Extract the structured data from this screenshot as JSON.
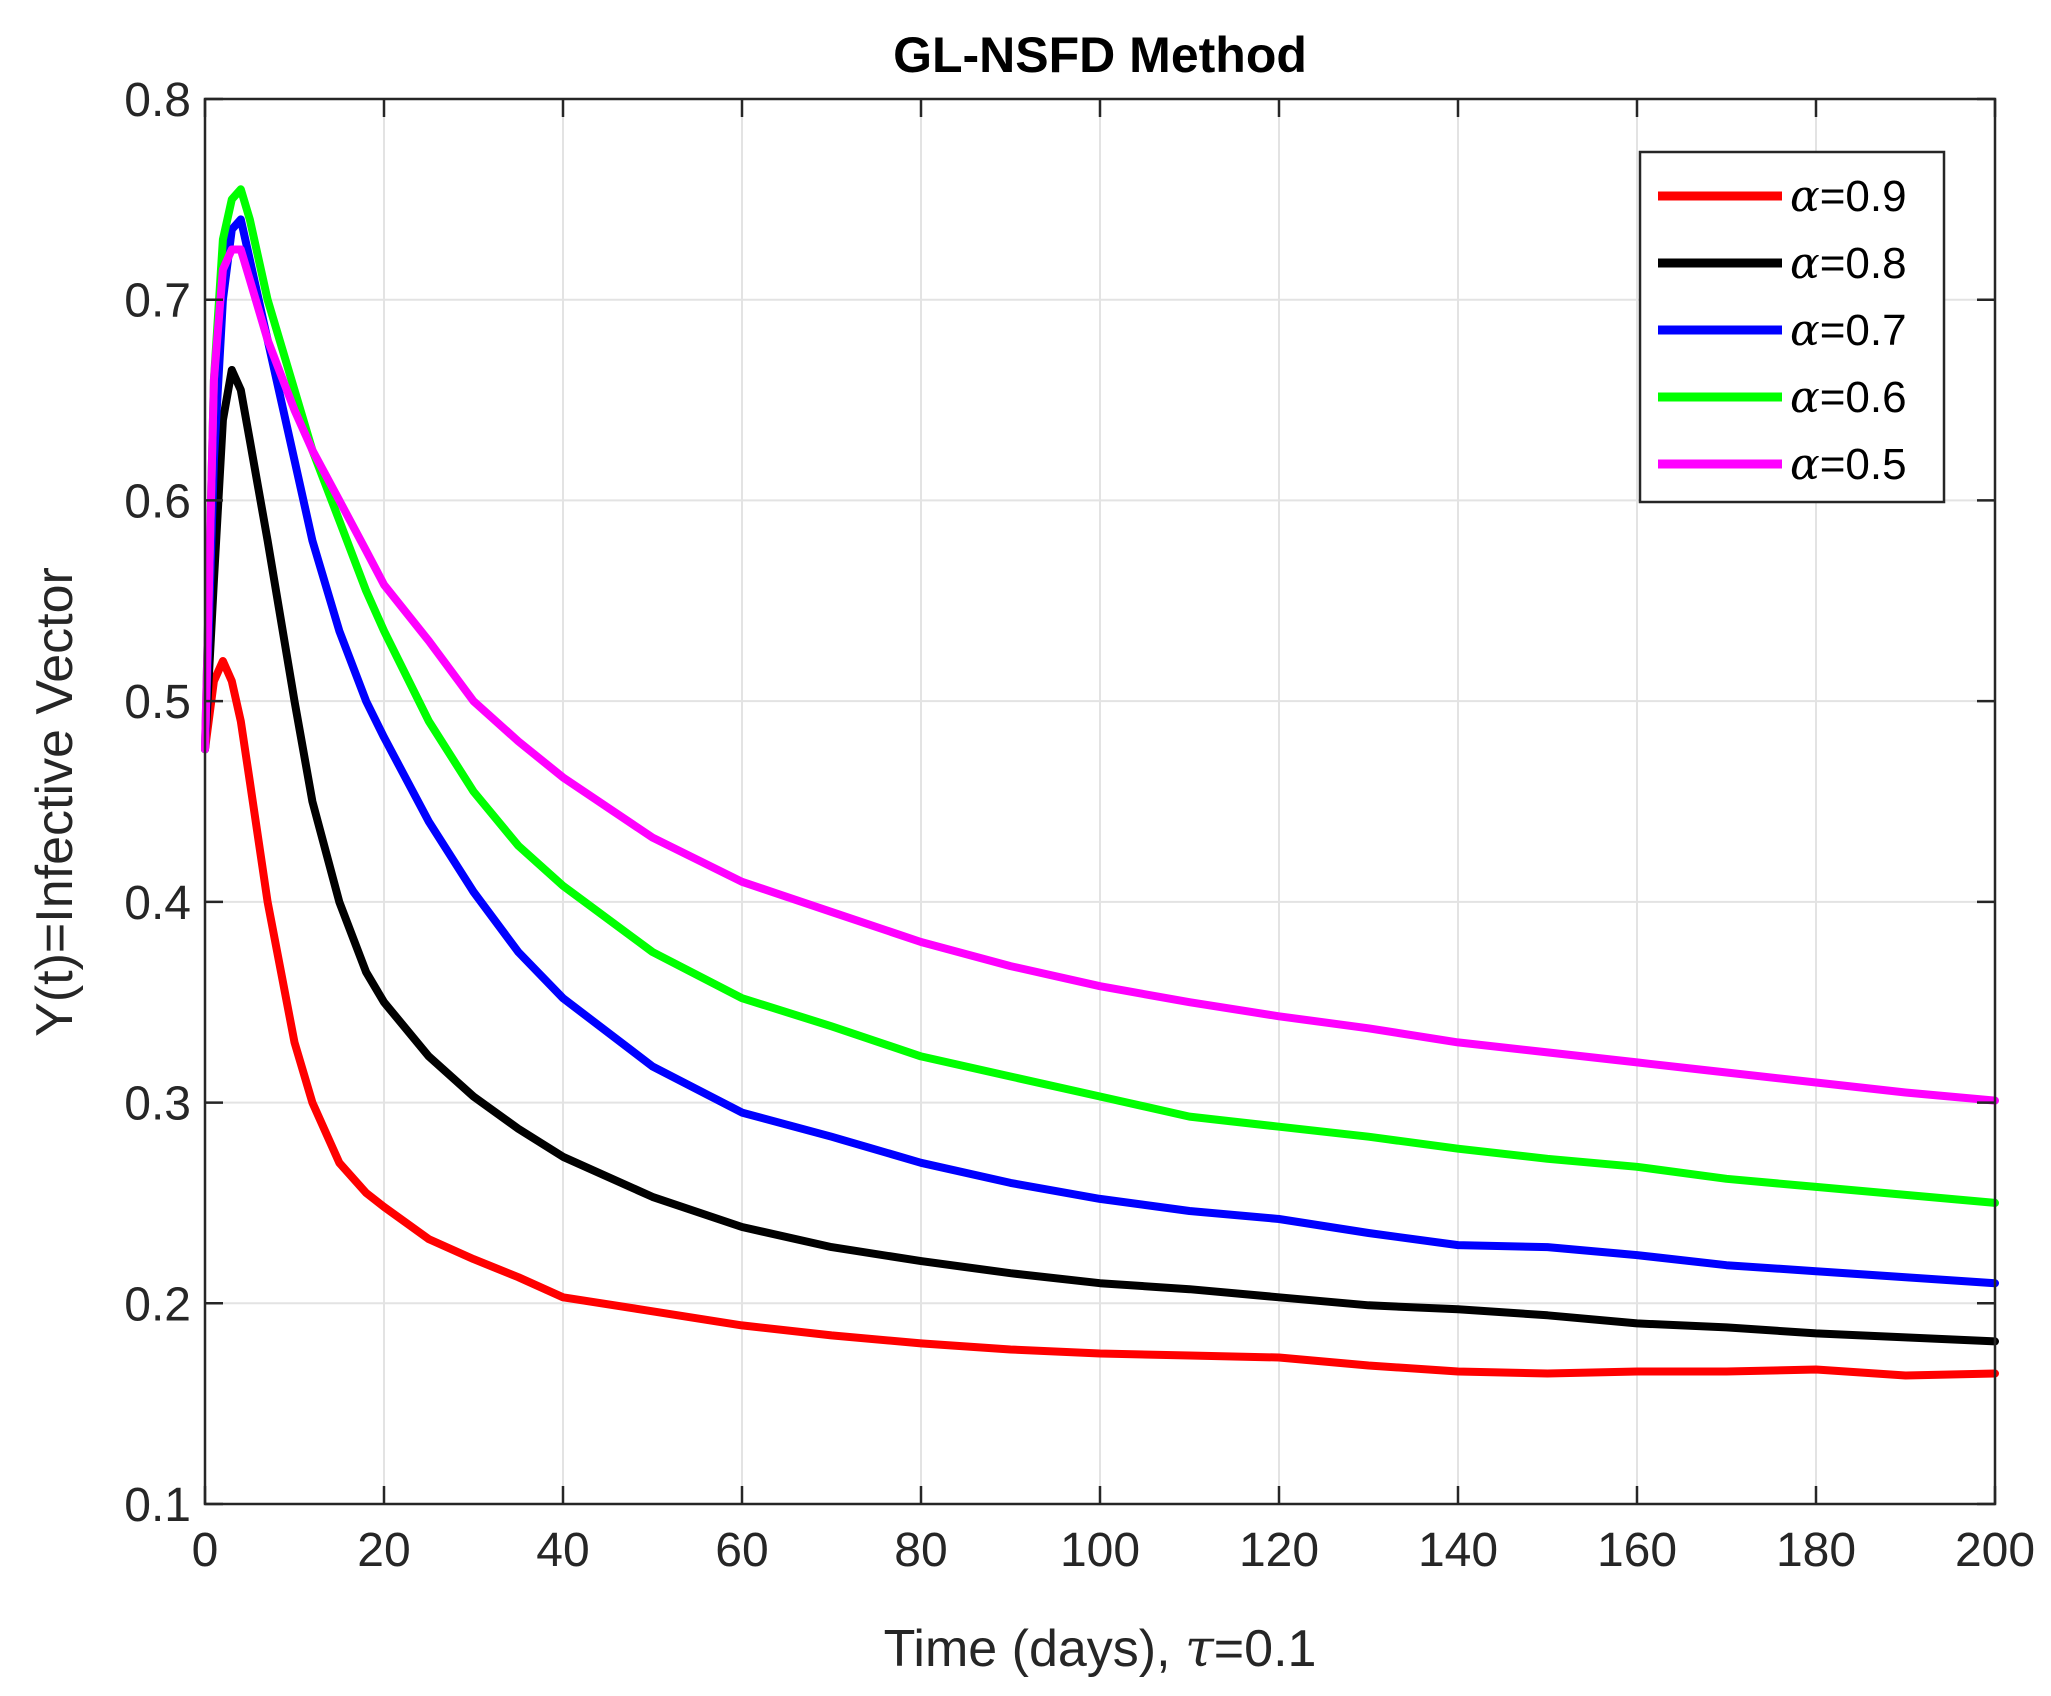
{
  "chart_data": {
    "type": "line",
    "title": "GL-NSFD Method",
    "xlabel": {
      "main": "Time (days), ",
      "greek": "τ",
      "suffix": "=0.1"
    },
    "ylabel": "Y(t)=Infective Vector",
    "xlim": [
      0,
      200
    ],
    "ylim": [
      0.1,
      0.8
    ],
    "xticks": [
      0,
      20,
      40,
      60,
      80,
      100,
      120,
      140,
      160,
      180,
      200
    ],
    "yticks": [
      0.1,
      0.2,
      0.3,
      0.4,
      0.5,
      0.6,
      0.7,
      0.8
    ],
    "xtick_labels": [
      "0",
      "20",
      "40",
      "60",
      "80",
      "100",
      "120",
      "140",
      "160",
      "180",
      "200"
    ],
    "ytick_labels": [
      "0.1",
      "0.2",
      "0.3",
      "0.4",
      "0.5",
      "0.6",
      "0.7",
      "0.8"
    ],
    "grid": true,
    "legend_position": "top-right",
    "series": [
      {
        "name": "α=0.9",
        "greek": "α",
        "value_text": "=0.9",
        "color": "#ff0000",
        "x": [
          0,
          1,
          2,
          3,
          4,
          5,
          7,
          10,
          12,
          15,
          18,
          20,
          25,
          30,
          35,
          40,
          50,
          60,
          70,
          80,
          90,
          100,
          110,
          120,
          130,
          140,
          150,
          160,
          170,
          180,
          190,
          200
        ],
        "y": [
          0.476,
          0.51,
          0.52,
          0.51,
          0.49,
          0.46,
          0.4,
          0.33,
          0.3,
          0.27,
          0.255,
          0.248,
          0.232,
          0.222,
          0.213,
          0.203,
          0.196,
          0.189,
          0.184,
          0.18,
          0.177,
          0.175,
          0.174,
          0.173,
          0.169,
          0.166,
          0.165,
          0.166,
          0.166,
          0.167,
          0.164,
          0.165
        ]
      },
      {
        "name": "α=0.8",
        "greek": "α",
        "value_text": "=0.8",
        "color": "#000000",
        "x": [
          0,
          1,
          2,
          3,
          4,
          5,
          7,
          10,
          12,
          15,
          18,
          20,
          25,
          30,
          35,
          40,
          50,
          60,
          70,
          80,
          90,
          100,
          110,
          120,
          130,
          140,
          150,
          160,
          170,
          180,
          190,
          200
        ],
        "y": [
          0.476,
          0.56,
          0.64,
          0.665,
          0.655,
          0.63,
          0.58,
          0.5,
          0.45,
          0.4,
          0.365,
          0.35,
          0.323,
          0.303,
          0.287,
          0.273,
          0.253,
          0.238,
          0.228,
          0.221,
          0.215,
          0.21,
          0.207,
          0.203,
          0.199,
          0.197,
          0.194,
          0.19,
          0.188,
          0.185,
          0.183,
          0.181
        ]
      },
      {
        "name": "α=0.7",
        "greek": "α",
        "value_text": "=0.7",
        "color": "#0000ff",
        "x": [
          0,
          1,
          2,
          3,
          4,
          5,
          7,
          10,
          12,
          15,
          18,
          20,
          25,
          30,
          35,
          40,
          50,
          60,
          70,
          80,
          90,
          100,
          110,
          120,
          130,
          140,
          150,
          160,
          170,
          180,
          190,
          200
        ],
        "y": [
          0.476,
          0.62,
          0.7,
          0.735,
          0.74,
          0.72,
          0.68,
          0.62,
          0.58,
          0.535,
          0.5,
          0.482,
          0.44,
          0.405,
          0.375,
          0.352,
          0.318,
          0.295,
          0.283,
          0.27,
          0.26,
          0.252,
          0.246,
          0.242,
          0.235,
          0.229,
          0.228,
          0.224,
          0.219,
          0.216,
          0.213,
          0.21
        ]
      },
      {
        "name": "α=0.6",
        "greek": "α",
        "value_text": "=0.6",
        "color": "#00ff00",
        "x": [
          0,
          1,
          2,
          3,
          4,
          5,
          7,
          10,
          12,
          15,
          18,
          20,
          25,
          30,
          35,
          40,
          50,
          60,
          70,
          80,
          90,
          100,
          110,
          120,
          130,
          140,
          150,
          160,
          170,
          180,
          190,
          200
        ],
        "y": [
          0.476,
          0.66,
          0.73,
          0.75,
          0.755,
          0.74,
          0.7,
          0.655,
          0.625,
          0.59,
          0.555,
          0.535,
          0.49,
          0.455,
          0.428,
          0.408,
          0.375,
          0.352,
          0.338,
          0.323,
          0.313,
          0.303,
          0.293,
          0.288,
          0.283,
          0.277,
          0.272,
          0.268,
          0.262,
          0.258,
          0.254,
          0.25
        ]
      },
      {
        "name": "α=0.5",
        "greek": "α",
        "value_text": "=0.5",
        "color": "#ff00ff",
        "x": [
          0,
          1,
          2,
          3,
          4,
          5,
          7,
          10,
          12,
          15,
          18,
          20,
          25,
          30,
          35,
          40,
          50,
          60,
          70,
          80,
          90,
          100,
          110,
          120,
          130,
          140,
          150,
          160,
          170,
          180,
          190,
          200
        ],
        "y": [
          0.476,
          0.66,
          0.715,
          0.725,
          0.725,
          0.71,
          0.68,
          0.645,
          0.625,
          0.6,
          0.575,
          0.558,
          0.53,
          0.5,
          0.48,
          0.462,
          0.432,
          0.41,
          0.395,
          0.38,
          0.368,
          0.358,
          0.35,
          0.343,
          0.337,
          0.33,
          0.325,
          0.32,
          0.315,
          0.31,
          0.305,
          0.301
        ]
      }
    ]
  }
}
